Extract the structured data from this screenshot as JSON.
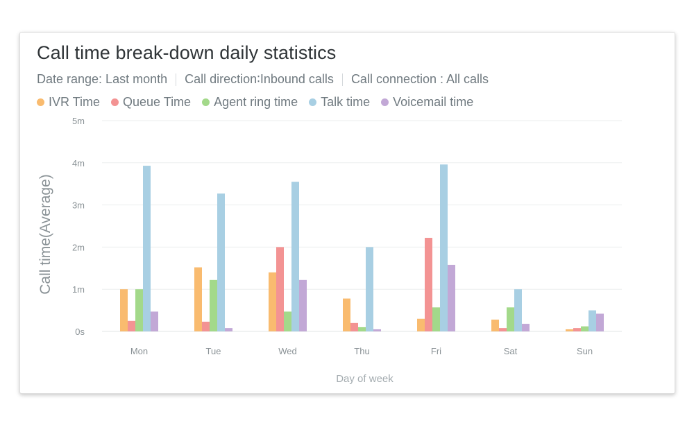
{
  "card": {
    "title": "Call time break-down daily statistics",
    "filters": [
      "Date range: Last month",
      "Call direction∶Inbound calls",
      "Call connection : All calls"
    ]
  },
  "chart_data": {
    "type": "bar",
    "title": "Call time break-down daily statistics",
    "xlabel": "Day of week",
    "ylabel": "Call time(Average)",
    "categories": [
      "Mon",
      "Tue",
      "Wed",
      "Thu",
      "Fri",
      "Sat",
      "Sun"
    ],
    "ylim": [
      0,
      5
    ],
    "y_ticks": [
      0,
      1,
      2,
      3,
      4,
      5
    ],
    "y_tick_labels": [
      "0s",
      "1m",
      "2m",
      "3m",
      "4m",
      "5m"
    ],
    "grid": true,
    "legend_position": "top-left",
    "series": [
      {
        "name": "IVR Time",
        "color": "#f9bb6f",
        "values": [
          1.0,
          1.52,
          1.4,
          0.78,
          0.3,
          0.28,
          0.05
        ]
      },
      {
        "name": "Queue Time",
        "color": "#f39393",
        "values": [
          0.25,
          0.23,
          2.0,
          0.2,
          2.22,
          0.08,
          0.08
        ]
      },
      {
        "name": "Agent ring time",
        "color": "#a3d98a",
        "values": [
          1.0,
          1.22,
          0.47,
          0.1,
          0.57,
          0.57,
          0.12
        ]
      },
      {
        "name": "Talk time",
        "color": "#a8cfe3",
        "values": [
          3.93,
          3.27,
          3.55,
          2.0,
          3.96,
          1.0,
          0.5
        ]
      },
      {
        "name": "Voicemail time",
        "color": "#c2a8d6",
        "values": [
          0.47,
          0.08,
          1.22,
          0.05,
          1.58,
          0.18,
          0.42
        ]
      }
    ]
  }
}
